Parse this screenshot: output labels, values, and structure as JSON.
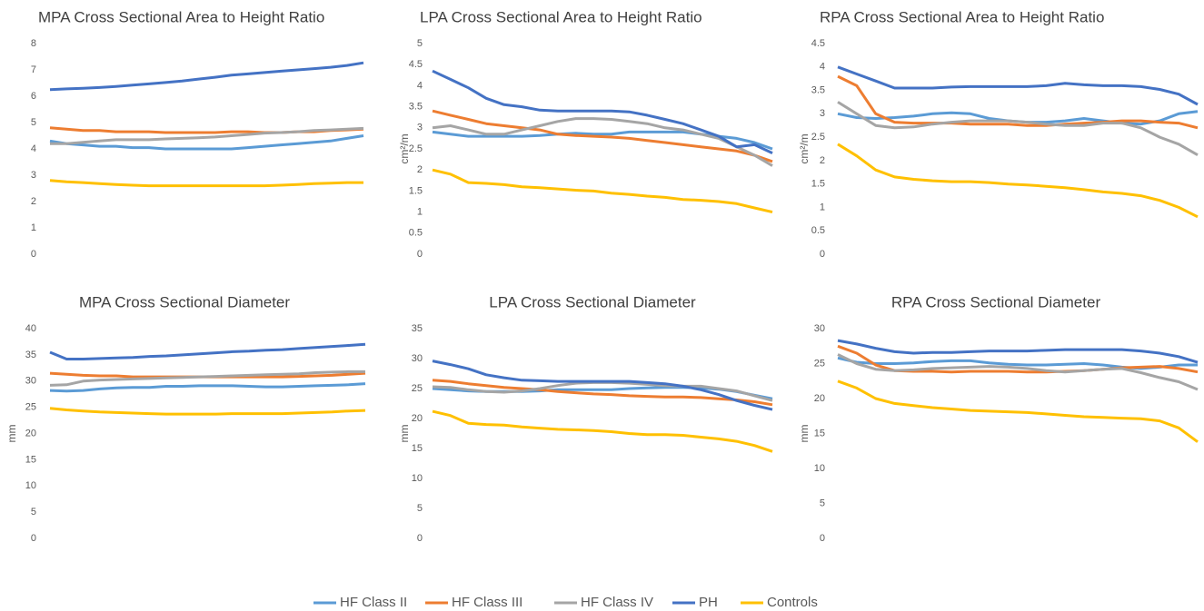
{
  "chart_data": [
    {
      "type": "line",
      "title": "MPA Cross Sectional Area to Height Ratio",
      "legend": "bottom",
      "ylim": [
        0,
        8
      ],
      "yticks": [
        0,
        1,
        2,
        3,
        4,
        5,
        6,
        7,
        8
      ],
      "series": [
        {
          "name": "HF Class II",
          "color": "#5b9bd5",
          "values": [
            4.3,
            4.2,
            4.15,
            4.1,
            4.1,
            4.05,
            4.05,
            4.0,
            4.0,
            4.0,
            4.0,
            4.0,
            4.05,
            4.1,
            4.15,
            4.2,
            4.25,
            4.3,
            4.4,
            4.5
          ]
        },
        {
          "name": "HF Class III",
          "color": "#ed7d31",
          "values": [
            4.8,
            4.75,
            4.7,
            4.7,
            4.65,
            4.65,
            4.65,
            4.62,
            4.62,
            4.62,
            4.62,
            4.65,
            4.65,
            4.62,
            4.62,
            4.65,
            4.65,
            4.7,
            4.72,
            4.75
          ]
        },
        {
          "name": "HF Class IV",
          "color": "#a5a5a5",
          "values": [
            4.2,
            4.2,
            4.25,
            4.3,
            4.35,
            4.35,
            4.35,
            4.38,
            4.4,
            4.42,
            4.45,
            4.5,
            4.55,
            4.6,
            4.62,
            4.65,
            4.7,
            4.72,
            4.75,
            4.78
          ]
        },
        {
          "name": "PH",
          "color": "#4472c4",
          "values": [
            6.25,
            6.28,
            6.3,
            6.33,
            6.37,
            6.42,
            6.47,
            6.52,
            6.58,
            6.65,
            6.72,
            6.8,
            6.85,
            6.9,
            6.95,
            7.0,
            7.05,
            7.1,
            7.17,
            7.27
          ]
        },
        {
          "name": "Controls",
          "color": "#ffc000",
          "values": [
            2.8,
            2.75,
            2.72,
            2.68,
            2.65,
            2.62,
            2.6,
            2.6,
            2.6,
            2.6,
            2.6,
            2.6,
            2.6,
            2.6,
            2.62,
            2.65,
            2.68,
            2.7,
            2.72,
            2.72
          ]
        }
      ]
    },
    {
      "type": "line",
      "title": "LPA Cross Sectional Area to Height Ratio",
      "y_label": "cm²/m",
      "ylim": [
        0,
        5
      ],
      "yticks": [
        0,
        0.5,
        1,
        1.5,
        2,
        2.5,
        3,
        3.5,
        4,
        4.5,
        5
      ],
      "series": [
        {
          "name": "HF Class II",
          "color": "#5b9bd5",
          "values": [
            2.9,
            2.85,
            2.8,
            2.8,
            2.8,
            2.8,
            2.82,
            2.85,
            2.87,
            2.85,
            2.85,
            2.9,
            2.9,
            2.9,
            2.9,
            2.85,
            2.8,
            2.75,
            2.65,
            2.5
          ]
        },
        {
          "name": "HF Class III",
          "color": "#ed7d31",
          "values": [
            3.4,
            3.3,
            3.2,
            3.1,
            3.05,
            3.0,
            2.95,
            2.85,
            2.82,
            2.8,
            2.78,
            2.75,
            2.7,
            2.65,
            2.6,
            2.55,
            2.5,
            2.45,
            2.35,
            2.2
          ]
        },
        {
          "name": "HF Class IV",
          "color": "#a5a5a5",
          "values": [
            3.0,
            3.05,
            2.95,
            2.85,
            2.85,
            2.95,
            3.05,
            3.15,
            3.22,
            3.22,
            3.2,
            3.15,
            3.1,
            3.0,
            2.95,
            2.85,
            2.75,
            2.55,
            2.35,
            2.1
          ]
        },
        {
          "name": "PH",
          "color": "#4472c4",
          "values": [
            4.35,
            4.15,
            3.95,
            3.7,
            3.55,
            3.5,
            3.42,
            3.4,
            3.4,
            3.4,
            3.4,
            3.38,
            3.3,
            3.2,
            3.1,
            2.95,
            2.8,
            2.55,
            2.6,
            2.4
          ]
        },
        {
          "name": "Controls",
          "color": "#ffc000",
          "values": [
            2.0,
            1.9,
            1.7,
            1.68,
            1.65,
            1.6,
            1.58,
            1.55,
            1.52,
            1.5,
            1.45,
            1.42,
            1.38,
            1.35,
            1.3,
            1.28,
            1.25,
            1.2,
            1.1,
            1.0
          ]
        }
      ]
    },
    {
      "type": "line",
      "title": "RPA Cross Sectional Area to Height Ratio",
      "y_label": "cm²/m",
      "ylim": [
        0,
        4.5
      ],
      "yticks": [
        0,
        0.5,
        1,
        1.5,
        2,
        2.5,
        3,
        3.5,
        4,
        4.5
      ],
      "series": [
        {
          "name": "HF Class II",
          "color": "#5b9bd5",
          "values": [
            3.0,
            2.92,
            2.9,
            2.92,
            2.95,
            3.0,
            3.02,
            3.0,
            2.9,
            2.85,
            2.82,
            2.82,
            2.85,
            2.9,
            2.85,
            2.8,
            2.78,
            2.85,
            3.0,
            3.05
          ]
        },
        {
          "name": "HF Class III",
          "color": "#ed7d31",
          "values": [
            3.8,
            3.6,
            3.0,
            2.82,
            2.8,
            2.8,
            2.8,
            2.78,
            2.78,
            2.78,
            2.75,
            2.75,
            2.78,
            2.8,
            2.82,
            2.85,
            2.85,
            2.82,
            2.8,
            2.7
          ]
        },
        {
          "name": "HF Class IV",
          "color": "#a5a5a5",
          "values": [
            3.25,
            3.0,
            2.75,
            2.7,
            2.72,
            2.78,
            2.82,
            2.85,
            2.85,
            2.85,
            2.82,
            2.78,
            2.75,
            2.75,
            2.8,
            2.8,
            2.7,
            2.5,
            2.35,
            2.12
          ]
        },
        {
          "name": "PH",
          "color": "#4472c4",
          "values": [
            4.0,
            3.85,
            3.7,
            3.55,
            3.55,
            3.55,
            3.57,
            3.58,
            3.58,
            3.58,
            3.58,
            3.6,
            3.65,
            3.62,
            3.6,
            3.6,
            3.58,
            3.52,
            3.42,
            3.2
          ]
        },
        {
          "name": "Controls",
          "color": "#ffc000",
          "values": [
            2.35,
            2.1,
            1.8,
            1.65,
            1.6,
            1.57,
            1.55,
            1.55,
            1.53,
            1.5,
            1.48,
            1.45,
            1.42,
            1.38,
            1.33,
            1.3,
            1.25,
            1.15,
            1.0,
            0.8
          ]
        }
      ]
    },
    {
      "type": "line",
      "title": "MPA Cross Sectional Diameter",
      "y_label": "mm",
      "ylim": [
        0,
        40
      ],
      "yticks": [
        0,
        5,
        10,
        15,
        20,
        25,
        30,
        35,
        40
      ],
      "series": [
        {
          "name": "HF Class II",
          "color": "#5b9bd5",
          "values": [
            28.2,
            28.1,
            28.2,
            28.5,
            28.7,
            28.8,
            28.8,
            29.0,
            29.0,
            29.1,
            29.1,
            29.1,
            29.0,
            28.9,
            28.9,
            29.0,
            29.1,
            29.2,
            29.3,
            29.5
          ]
        },
        {
          "name": "HF Class III",
          "color": "#ed7d31",
          "values": [
            31.5,
            31.3,
            31.1,
            31.0,
            31.0,
            30.8,
            30.8,
            30.8,
            30.8,
            30.8,
            30.8,
            30.8,
            30.8,
            30.8,
            30.8,
            30.9,
            31.0,
            31.1,
            31.3,
            31.5
          ]
        },
        {
          "name": "HF Class IV",
          "color": "#a5a5a5",
          "values": [
            29.2,
            29.3,
            30.0,
            30.2,
            30.3,
            30.4,
            30.5,
            30.6,
            30.7,
            30.8,
            30.9,
            31.0,
            31.1,
            31.2,
            31.3,
            31.4,
            31.6,
            31.7,
            31.8,
            31.8
          ]
        },
        {
          "name": "PH",
          "color": "#4472c4",
          "values": [
            35.5,
            34.2,
            34.2,
            34.3,
            34.4,
            34.5,
            34.7,
            34.8,
            35.0,
            35.2,
            35.4,
            35.6,
            35.7,
            35.9,
            36.0,
            36.2,
            36.4,
            36.6,
            36.8,
            37.0
          ]
        },
        {
          "name": "Controls",
          "color": "#ffc000",
          "values": [
            24.8,
            24.5,
            24.3,
            24.1,
            24.0,
            23.9,
            23.8,
            23.7,
            23.7,
            23.7,
            23.7,
            23.8,
            23.8,
            23.8,
            23.8,
            23.9,
            24.0,
            24.1,
            24.3,
            24.4
          ]
        }
      ]
    },
    {
      "type": "line",
      "title": "LPA Cross Sectional Diameter",
      "y_label": "mm",
      "ylim": [
        0,
        35
      ],
      "yticks": [
        0,
        5,
        10,
        15,
        20,
        25,
        30,
        35
      ],
      "series": [
        {
          "name": "HF Class II",
          "color": "#5b9bd5",
          "values": [
            25,
            24.8,
            24.6,
            24.5,
            24.5,
            24.5,
            24.6,
            24.8,
            24.8,
            24.8,
            24.8,
            25,
            25.1,
            25.2,
            25.2,
            25.1,
            24.9,
            24.5,
            23.9,
            23.3
          ]
        },
        {
          "name": "HF Class III",
          "color": "#ed7d31",
          "values": [
            26.4,
            26.2,
            25.8,
            25.5,
            25.2,
            25,
            24.8,
            24.5,
            24.3,
            24.1,
            24,
            23.8,
            23.7,
            23.6,
            23.6,
            23.5,
            23.3,
            23.1,
            22.8,
            22.3
          ]
        },
        {
          "name": "HF Class IV",
          "color": "#a5a5a5",
          "values": [
            25.3,
            25.2,
            24.8,
            24.5,
            24.4,
            24.6,
            25,
            25.5,
            25.9,
            26,
            26,
            25.9,
            25.7,
            25.5,
            25.4,
            25.4,
            25,
            24.6,
            23.8,
            23
          ]
        },
        {
          "name": "PH",
          "color": "#4472c4",
          "values": [
            29.6,
            29,
            28.3,
            27.3,
            26.8,
            26.4,
            26.3,
            26.2,
            26.2,
            26.2,
            26.2,
            26.2,
            26,
            25.8,
            25.4,
            24.8,
            24,
            23,
            22.2,
            21.5
          ]
        },
        {
          "name": "Controls",
          "color": "#ffc000",
          "values": [
            21.2,
            20.5,
            19.2,
            19.0,
            18.9,
            18.6,
            18.4,
            18.2,
            18.1,
            18.0,
            17.8,
            17.5,
            17.3,
            17.3,
            17.2,
            16.9,
            16.6,
            16.2,
            15.5,
            14.5
          ]
        }
      ]
    },
    {
      "type": "line",
      "title": "RPA Cross Sectional Diameter",
      "y_label": "mm",
      "ylim": [
        0,
        30
      ],
      "yticks": [
        0,
        5,
        10,
        15,
        20,
        25,
        30
      ],
      "series": [
        {
          "name": "HF Class II",
          "color": "#5b9bd5",
          "values": [
            25.8,
            25.2,
            25.0,
            25.0,
            25.1,
            25.3,
            25.4,
            25.4,
            25.1,
            24.9,
            24.8,
            24.8,
            24.9,
            25.0,
            24.8,
            24.5,
            24.3,
            24.5,
            24.8,
            24.8
          ]
        },
        {
          "name": "HF Class III",
          "color": "#ed7d31",
          "values": [
            27.5,
            26.5,
            24.8,
            24.0,
            23.9,
            23.9,
            23.8,
            23.9,
            23.9,
            23.9,
            23.8,
            23.8,
            23.9,
            24.0,
            24.2,
            24.4,
            24.5,
            24.6,
            24.3,
            23.8
          ]
        },
        {
          "name": "HF Class IV",
          "color": "#a5a5a5",
          "values": [
            26.3,
            25.0,
            24.2,
            24.0,
            24.1,
            24.3,
            24.4,
            24.5,
            24.6,
            24.5,
            24.3,
            24.0,
            23.8,
            24.0,
            24.2,
            24.3,
            23.7,
            23.0,
            22.4,
            21.3
          ]
        },
        {
          "name": "PH",
          "color": "#4472c4",
          "values": [
            28.3,
            27.8,
            27.2,
            26.7,
            26.5,
            26.6,
            26.6,
            26.7,
            26.8,
            26.8,
            26.8,
            26.9,
            27.0,
            27.0,
            27.0,
            27.0,
            26.8,
            26.5,
            26.0,
            25.2
          ]
        },
        {
          "name": "Controls",
          "color": "#ffc000",
          "values": [
            22.5,
            21.5,
            20.0,
            19.3,
            19.0,
            18.7,
            18.5,
            18.3,
            18.2,
            18.1,
            18.0,
            17.8,
            17.6,
            17.4,
            17.3,
            17.2,
            17.1,
            16.8,
            15.8,
            13.8
          ]
        }
      ]
    }
  ]
}
